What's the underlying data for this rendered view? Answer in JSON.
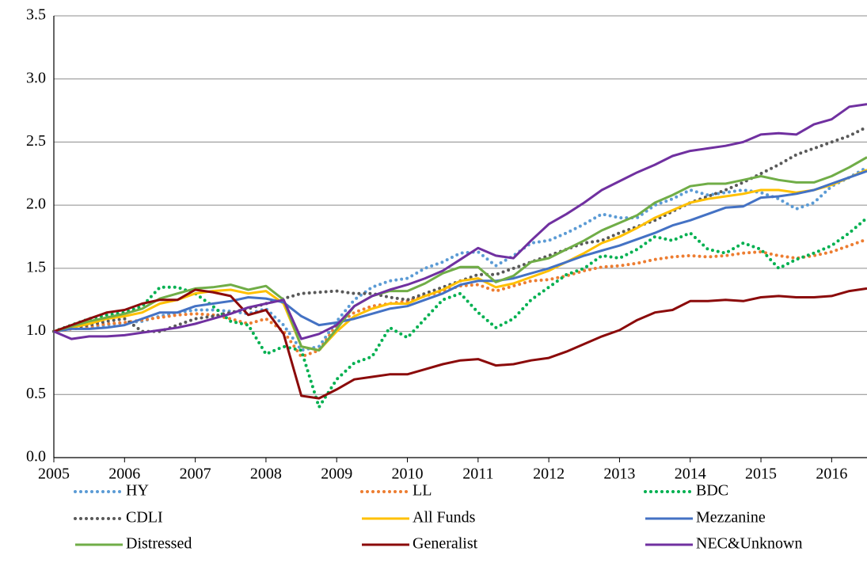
{
  "chart_data": {
    "type": "line",
    "x": [
      2005,
      2005.25,
      2005.5,
      2005.75,
      2006,
      2006.25,
      2006.5,
      2006.75,
      2007,
      2007.25,
      2007.5,
      2007.75,
      2008,
      2008.25,
      2008.5,
      2008.75,
      2009,
      2009.25,
      2009.5,
      2009.75,
      2010,
      2010.25,
      2010.5,
      2010.75,
      2011,
      2011.25,
      2011.5,
      2011.75,
      2012,
      2012.25,
      2012.5,
      2012.75,
      2013,
      2013.25,
      2013.5,
      2013.75,
      2014,
      2014.25,
      2014.5,
      2014.75,
      2015,
      2015.25,
      2015.5,
      2015.75,
      2016,
      2016.25,
      2016.5
    ],
    "xlim": [
      2005,
      2016.5
    ],
    "xticks": [
      2005,
      2006,
      2007,
      2008,
      2009,
      2010,
      2011,
      2012,
      2013,
      2014,
      2015,
      2016
    ],
    "ylim": [
      0,
      3.5
    ],
    "yticks": [
      {
        "value": 0,
        "label": "0.0"
      },
      0.5,
      {
        "value": 1,
        "label": "1.0"
      },
      1.5,
      {
        "value": 2,
        "label": "2.0"
      },
      2.5,
      {
        "value": 3,
        "label": "3.0"
      },
      3.5
    ],
    "grid": true,
    "legend": "bottom",
    "series": [
      {
        "name": "HY",
        "color": "#5b9bd5",
        "style": "dotted",
        "values": [
          1.0,
          1.02,
          1.03,
          1.05,
          1.07,
          1.08,
          1.12,
          1.15,
          1.17,
          1.17,
          1.16,
          1.14,
          1.18,
          1.05,
          0.85,
          0.88,
          1.08,
          1.25,
          1.35,
          1.4,
          1.42,
          1.5,
          1.55,
          1.62,
          1.63,
          1.52,
          1.6,
          1.7,
          1.72,
          1.78,
          1.85,
          1.93,
          1.9,
          1.9,
          2.0,
          2.05,
          2.12,
          2.08,
          2.1,
          2.12,
          2.1,
          2.05,
          1.97,
          2.02,
          2.15,
          2.22,
          2.3
        ]
      },
      {
        "name": "LL",
        "color": "#ed7d31",
        "style": "dotted",
        "values": [
          1.0,
          1.02,
          1.04,
          1.06,
          1.07,
          1.09,
          1.11,
          1.13,
          1.14,
          1.13,
          1.1,
          1.06,
          1.1,
          1.0,
          0.8,
          0.85,
          1.05,
          1.15,
          1.2,
          1.22,
          1.24,
          1.28,
          1.32,
          1.36,
          1.37,
          1.32,
          1.36,
          1.4,
          1.41,
          1.44,
          1.48,
          1.51,
          1.52,
          1.54,
          1.57,
          1.59,
          1.6,
          1.59,
          1.6,
          1.62,
          1.63,
          1.6,
          1.58,
          1.6,
          1.63,
          1.68,
          1.73
        ]
      },
      {
        "name": "BDC",
        "color": "#00b050",
        "style": "dotted",
        "values": [
          1.0,
          1.05,
          1.1,
          1.13,
          1.15,
          1.2,
          1.35,
          1.35,
          1.3,
          1.2,
          1.08,
          1.05,
          0.82,
          0.88,
          0.85,
          0.4,
          0.62,
          0.75,
          0.8,
          1.03,
          0.95,
          1.1,
          1.25,
          1.3,
          1.15,
          1.03,
          1.1,
          1.25,
          1.35,
          1.45,
          1.5,
          1.6,
          1.58,
          1.65,
          1.75,
          1.72,
          1.78,
          1.65,
          1.62,
          1.7,
          1.65,
          1.5,
          1.57,
          1.62,
          1.68,
          1.78,
          1.9
        ]
      },
      {
        "name": "CDLI",
        "color": "#595959",
        "style": "dotted",
        "values": [
          1.0,
          1.03,
          1.05,
          1.08,
          1.1,
          1.0,
          1.0,
          1.05,
          1.1,
          1.12,
          1.15,
          1.18,
          1.22,
          1.26,
          1.3,
          1.31,
          1.32,
          1.3,
          1.3,
          1.27,
          1.25,
          1.3,
          1.35,
          1.4,
          1.45,
          1.45,
          1.5,
          1.55,
          1.6,
          1.65,
          1.7,
          1.72,
          1.78,
          1.83,
          1.88,
          1.95,
          2.02,
          2.07,
          2.12,
          2.18,
          2.25,
          2.32,
          2.4,
          2.45,
          2.5,
          2.55,
          2.62
        ]
      },
      {
        "name": "All Funds",
        "color": "#ffc000",
        "style": "solid",
        "values": [
          1.0,
          1.03,
          1.06,
          1.1,
          1.12,
          1.15,
          1.22,
          1.25,
          1.3,
          1.32,
          1.33,
          1.3,
          1.32,
          1.22,
          0.88,
          0.85,
          1.0,
          1.12,
          1.18,
          1.22,
          1.22,
          1.28,
          1.33,
          1.4,
          1.42,
          1.35,
          1.38,
          1.43,
          1.48,
          1.55,
          1.62,
          1.7,
          1.75,
          1.82,
          1.9,
          1.96,
          2.02,
          2.05,
          2.07,
          2.09,
          2.12,
          2.12,
          2.1,
          2.12,
          2.16,
          2.22,
          2.28
        ]
      },
      {
        "name": "Mezzanine",
        "color": "#4472c4",
        "style": "solid",
        "values": [
          1.0,
          1.02,
          1.02,
          1.03,
          1.05,
          1.1,
          1.15,
          1.15,
          1.2,
          1.22,
          1.24,
          1.27,
          1.26,
          1.23,
          1.12,
          1.05,
          1.07,
          1.1,
          1.14,
          1.18,
          1.2,
          1.25,
          1.3,
          1.37,
          1.4,
          1.4,
          1.42,
          1.46,
          1.5,
          1.55,
          1.6,
          1.64,
          1.68,
          1.73,
          1.78,
          1.84,
          1.88,
          1.93,
          1.98,
          1.99,
          2.06,
          2.07,
          2.09,
          2.12,
          2.17,
          2.22,
          2.27
        ]
      },
      {
        "name": "Distressed",
        "color": "#70ad47",
        "style": "solid",
        "values": [
          1.0,
          1.04,
          1.08,
          1.11,
          1.14,
          1.18,
          1.26,
          1.3,
          1.34,
          1.35,
          1.37,
          1.33,
          1.36,
          1.25,
          0.88,
          0.85,
          1.02,
          1.2,
          1.28,
          1.32,
          1.32,
          1.38,
          1.46,
          1.51,
          1.51,
          1.39,
          1.44,
          1.55,
          1.58,
          1.65,
          1.72,
          1.8,
          1.86,
          1.92,
          2.02,
          2.08,
          2.15,
          2.17,
          2.17,
          2.2,
          2.23,
          2.2,
          2.18,
          2.18,
          2.23,
          2.3,
          2.38
        ]
      },
      {
        "name": "Generalist",
        "color": "#8b0a0a",
        "style": "solid",
        "values": [
          1.0,
          1.05,
          1.1,
          1.15,
          1.17,
          1.22,
          1.25,
          1.25,
          1.33,
          1.31,
          1.28,
          1.13,
          1.17,
          0.98,
          0.49,
          0.47,
          0.54,
          0.62,
          0.64,
          0.66,
          0.66,
          0.7,
          0.74,
          0.77,
          0.78,
          0.73,
          0.74,
          0.77,
          0.79,
          0.84,
          0.9,
          0.96,
          1.01,
          1.09,
          1.15,
          1.17,
          1.24,
          1.24,
          1.25,
          1.24,
          1.27,
          1.28,
          1.27,
          1.27,
          1.28,
          1.32,
          1.34
        ]
      },
      {
        "name": "NEC&Unknown",
        "color": "#7030a0",
        "style": "solid",
        "values": [
          1.0,
          0.94,
          0.96,
          0.96,
          0.97,
          0.99,
          1.01,
          1.03,
          1.06,
          1.1,
          1.14,
          1.19,
          1.22,
          1.25,
          0.94,
          0.98,
          1.05,
          1.2,
          1.28,
          1.33,
          1.37,
          1.42,
          1.48,
          1.57,
          1.66,
          1.6,
          1.58,
          1.72,
          1.85,
          1.93,
          2.02,
          2.12,
          2.19,
          2.26,
          2.32,
          2.39,
          2.43,
          2.45,
          2.47,
          2.5,
          2.56,
          2.57,
          2.56,
          2.64,
          2.68,
          2.78,
          2.8
        ]
      }
    ]
  }
}
